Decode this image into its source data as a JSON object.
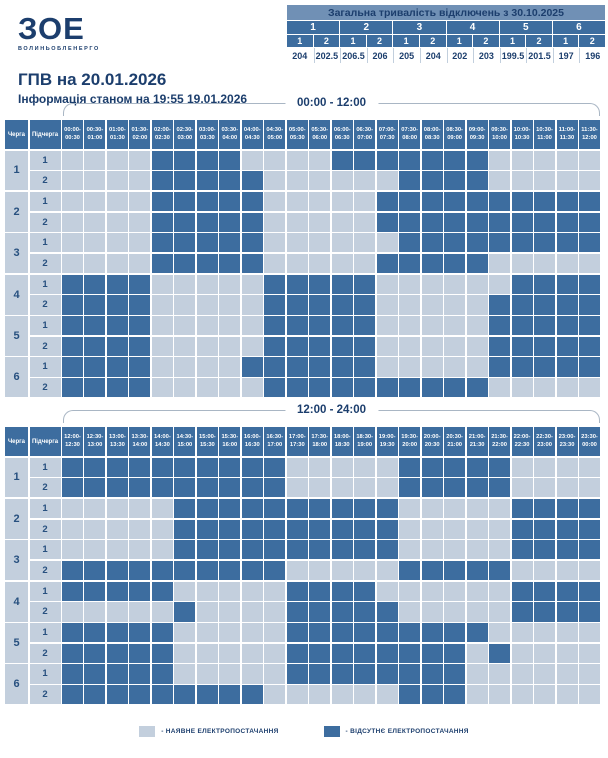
{
  "logo": {
    "text": "ЗОЕ",
    "caption": "ВОЛИНЬОБЛЕНЕРГО"
  },
  "header": {
    "title": "ГПВ на 20.01.2026",
    "subtitle": "Інформація станом на 19:55 19.01.2026"
  },
  "summary": {
    "title": "Загальна тривалість відключень з 30.10.2025",
    "groups": [
      "1",
      "2",
      "3",
      "4",
      "5",
      "6"
    ],
    "subgroups": [
      "1",
      "2",
      "1",
      "2",
      "1",
      "2",
      "1",
      "2",
      "1",
      "2",
      "1",
      "2"
    ],
    "values": [
      "204",
      "202.5",
      "206.5",
      "206",
      "205",
      "204",
      "202",
      "203",
      "199.5",
      "201.5",
      "197",
      "196"
    ]
  },
  "table_labels": {
    "queue": "Черга",
    "subqueue": "Підчерга"
  },
  "legend": {
    "available": "- НАЯВНЕ ЕЛЕКТРОПОСТАЧАННЯ",
    "absent": "- ВІДСУТНЄ ЕЛЕКТРОПОСТАЧАННЯ"
  },
  "grids": [
    {
      "title": "00:00 - 12:00",
      "slots": [
        "00:00-\n00:30",
        "00:30-\n01:00",
        "01:00-\n01:30",
        "01:30-\n02:00",
        "02:00-\n02:30",
        "02:30-\n03:00",
        "03:00-\n03:30",
        "03:30-\n04:00",
        "04:00-\n04:30",
        "04:30-\n05:00",
        "05:00-\n05:30",
        "05:30-\n06:00",
        "06:00-\n06:30",
        "06:30-\n07:00",
        "07:00-\n07:30",
        "07:30-\n08:00",
        "08:00-\n08:30",
        "08:30-\n09:00",
        "09:00-\n09:30",
        "09:30-\n10:00",
        "10:00-\n10:30",
        "10:30-\n11:00",
        "11:00-\n11:30",
        "11:30-\n12:00"
      ],
      "rows": [
        {
          "q": "1",
          "s": "1",
          "cells": "000011110000111111100000"
        },
        {
          "q": "1",
          "s": "2",
          "cells": "000011111000000111100000"
        },
        {
          "q": "2",
          "s": "1",
          "cells": "000011111000001111111111"
        },
        {
          "q": "2",
          "s": "2",
          "cells": "000011111000001111111111"
        },
        {
          "q": "3",
          "s": "1",
          "cells": "000011111000000111111111"
        },
        {
          "q": "3",
          "s": "2",
          "cells": "000011111000001111100000"
        },
        {
          "q": "4",
          "s": "1",
          "cells": "111100000111110000001111"
        },
        {
          "q": "4",
          "s": "2",
          "cells": "111100000111110000011111"
        },
        {
          "q": "5",
          "s": "1",
          "cells": "111100000111110000011111"
        },
        {
          "q": "5",
          "s": "2",
          "cells": "111100000111110000011111"
        },
        {
          "q": "6",
          "s": "1",
          "cells": "111100001111110000011111"
        },
        {
          "q": "6",
          "s": "2",
          "cells": "111100000111111111100000"
        }
      ]
    },
    {
      "title": "12:00 - 24:00",
      "slots": [
        "12:00-\n12:30",
        "12:30-\n13:00",
        "13:00-\n13:30",
        "13:30-\n14:00",
        "14:00-\n14:30",
        "14:30-\n15:00",
        "15:00-\n15:30",
        "15:30-\n16:00",
        "16:00-\n16:30",
        "16:30-\n17:00",
        "17:00-\n17:30",
        "17:30-\n18:00",
        "18:00-\n18:30",
        "18:30-\n19:00",
        "19:00-\n19:30",
        "19:30-\n20:00",
        "20:00-\n20:30",
        "20:30-\n21:00",
        "21:00-\n21:30",
        "21:30-\n22:00",
        "22:00-\n22:30",
        "22:30-\n23:00",
        "23:00-\n23:30",
        "23:30-\n00:00"
      ],
      "rows": [
        {
          "q": "1",
          "s": "1",
          "cells": "111111111100000111110000"
        },
        {
          "q": "1",
          "s": "2",
          "cells": "111111111100000111110000"
        },
        {
          "q": "2",
          "s": "1",
          "cells": "000001111111111000001111"
        },
        {
          "q": "2",
          "s": "2",
          "cells": "000001111111111000001111"
        },
        {
          "q": "3",
          "s": "1",
          "cells": "000001111111111000001111"
        },
        {
          "q": "3",
          "s": "2",
          "cells": "111111111100000111110000"
        },
        {
          "q": "4",
          "s": "1",
          "cells": "111110000011110000001111"
        },
        {
          "q": "4",
          "s": "2",
          "cells": "000001000011111000001111"
        },
        {
          "q": "5",
          "s": "1",
          "cells": "111110000011111111100000"
        },
        {
          "q": "5",
          "s": "2",
          "cells": "111110000011111111010000"
        },
        {
          "q": "6",
          "s": "1",
          "cells": "111110000011111111000000"
        },
        {
          "q": "6",
          "s": "2",
          "cells": "111111111000000111000000"
        }
      ]
    }
  ]
}
